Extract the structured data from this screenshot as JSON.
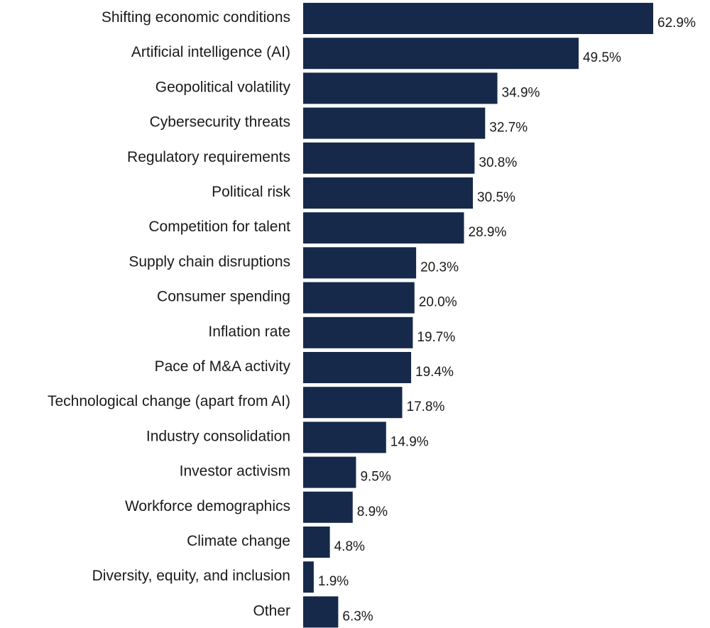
{
  "chart_data": {
    "type": "bar",
    "orientation": "horizontal",
    "categories": [
      "Shifting economic conditions",
      "Artificial intelligence (AI)",
      "Geopolitical volatility",
      "Cybersecurity threats",
      "Regulatory requirements",
      "Political risk",
      "Competition for talent",
      "Supply chain disruptions",
      "Consumer spending",
      "Inflation rate",
      "Pace of M&A activity",
      "Technological change (apart from AI)",
      "Industry consolidation",
      "Investor activism",
      "Workforce demographics",
      "Climate change",
      "Diversity, equity, and inclusion",
      "Other"
    ],
    "values": [
      62.9,
      49.5,
      34.9,
      32.7,
      30.8,
      30.5,
      28.9,
      20.3,
      20.0,
      19.7,
      19.4,
      17.8,
      14.9,
      9.5,
      8.9,
      4.8,
      1.9,
      6.3
    ],
    "value_labels": [
      "62.9%",
      "49.5%",
      "34.9%",
      "32.7%",
      "30.8%",
      "30.5%",
      "28.9%",
      "20.3%",
      "20.0%",
      "19.7%",
      "19.4%",
      "17.8%",
      "14.9%",
      "9.5%",
      "8.9%",
      "4.8%",
      "1.9%",
      "6.3%"
    ],
    "unit": "%",
    "xlim": [
      0,
      62.9
    ],
    "grid": false,
    "bar_color": "#16294a"
  }
}
